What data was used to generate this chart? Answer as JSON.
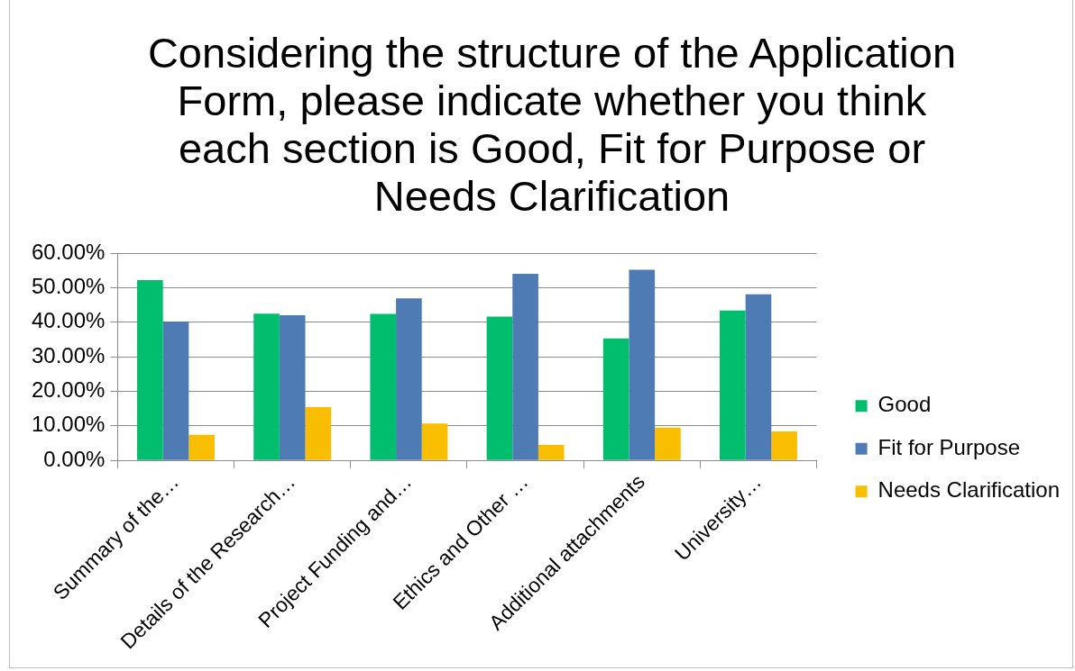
{
  "chart_data": {
    "type": "bar",
    "title": "Considering the structure of the Application Form, please indicate whether you think each section is Good, Fit for Purpose or Needs Clarification",
    "categories": [
      "Summary of the…",
      "Details of the Research…",
      "Project Funding and…",
      "Ethics and Other …",
      "Additional attachments",
      "University…"
    ],
    "series": [
      {
        "name": "Good",
        "color": "#00be6e",
        "values": [
          52.2,
          42.5,
          42.4,
          41.6,
          35.3,
          43.4
        ]
      },
      {
        "name": "Fit for Purpose",
        "color": "#4f7bb5",
        "values": [
          40.2,
          42.0,
          46.9,
          54.0,
          55.2,
          48.1
        ]
      },
      {
        "name": "Needs Clarification",
        "color": "#f9be00",
        "values": [
          7.4,
          15.4,
          10.7,
          4.5,
          9.5,
          8.4
        ]
      }
    ],
    "ylim": [
      0,
      60
    ],
    "yticks": [
      {
        "value": 0,
        "label": "0.00%"
      },
      {
        "value": 10,
        "label": "10.00%"
      },
      {
        "value": 20,
        "label": "20.00%"
      },
      {
        "value": 30,
        "label": "30.00%"
      },
      {
        "value": 40,
        "label": "40.00%"
      },
      {
        "value": 50,
        "label": "50.00%"
      },
      {
        "value": 60,
        "label": "60.00%"
      }
    ],
    "grid": "y",
    "legend": "right"
  }
}
